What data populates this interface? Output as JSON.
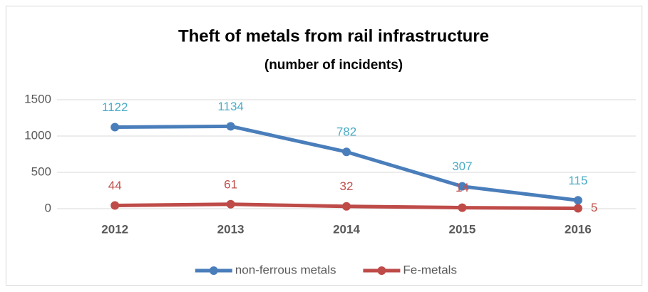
{
  "chart_data": {
    "type": "line",
    "title": "Theft of metals from rail infrastructure",
    "subtitle": "(number of incidents)",
    "categories": [
      "2012",
      "2013",
      "2014",
      "2015",
      "2016"
    ],
    "series": [
      {
        "name": "non-ferrous metals",
        "color": "#4a7ebb",
        "label_color": "#4bacc6",
        "values": [
          1122,
          1134,
          782,
          307,
          115
        ]
      },
      {
        "name": "Fe-metals",
        "color": "#be4b48",
        "label_color": "#c0504d",
        "values": [
          44,
          61,
          32,
          14,
          5
        ]
      }
    ],
    "ylim": [
      0,
      1500
    ],
    "yticks": [
      0,
      500,
      1000,
      1500
    ],
    "grid": true,
    "legend": "bottom"
  }
}
